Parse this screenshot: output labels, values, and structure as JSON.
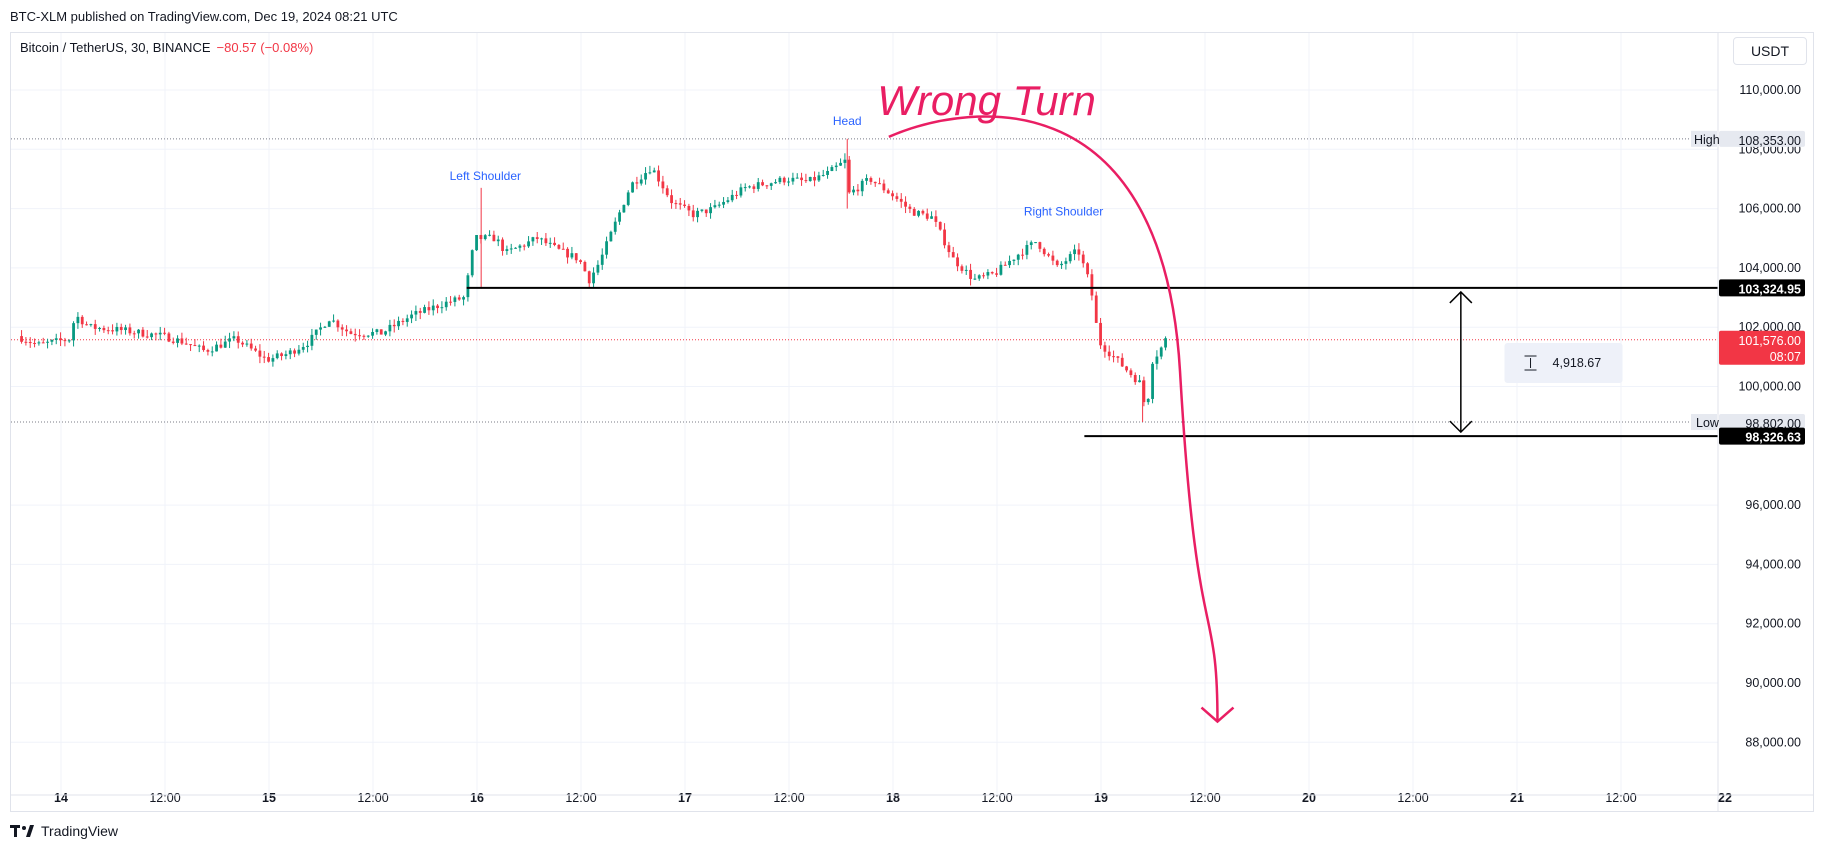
{
  "header": {
    "publisher_line": "BTC-XLM published on TradingView.com, Dec 19, 2024 08:21 UTC"
  },
  "legend": {
    "symbol": "Bitcoin / TetherUS, 30, BINANCE",
    "change": "−80.57 (−0.08%)"
  },
  "currency_button": "USDT",
  "footer": {
    "brand": "TradingView"
  },
  "chart_data": {
    "type": "candlestick",
    "symbol": "BTCUSDT",
    "interval": "30",
    "exchange": "BINANCE",
    "ylim": [
      87000,
      111500
    ],
    "y_ticks": [
      "110,000.00",
      "108,000.00",
      "106,000.00",
      "104,000.00",
      "102,000.00",
      "100,000.00",
      "96,000.00",
      "94,000.00",
      "92,000.00",
      "90,000.00",
      "88,000.00"
    ],
    "y_tick_values": [
      110000,
      108000,
      106000,
      104000,
      102000,
      100000,
      96000,
      94000,
      92000,
      90000,
      88000
    ],
    "x_ticks": [
      "14",
      "12:00",
      "15",
      "12:00",
      "16",
      "12:00",
      "17",
      "12:00",
      "18",
      "12:00",
      "19",
      "12:00",
      "20",
      "12:00",
      "21",
      "12:00",
      "22"
    ],
    "x_tick_days": [
      14,
      14.5,
      15,
      15.5,
      16,
      16.5,
      17,
      17.5,
      18,
      18.5,
      19,
      19.5,
      20,
      20.5,
      21,
      21.5,
      22
    ],
    "x_range_days": [
      13.8,
      22.0
    ],
    "last_candle_day": 19.32,
    "price_path_anchors": [
      {
        "t": 13.8,
        "p": 101700
      },
      {
        "t": 13.9,
        "p": 101400
      },
      {
        "t": 14.05,
        "p": 101600
      },
      {
        "t": 14.08,
        "p": 102400
      },
      {
        "t": 14.15,
        "p": 102000
      },
      {
        "t": 14.3,
        "p": 101900
      },
      {
        "t": 14.5,
        "p": 101700
      },
      {
        "t": 14.6,
        "p": 101500
      },
      {
        "t": 14.7,
        "p": 101200
      },
      {
        "t": 14.85,
        "p": 101600
      },
      {
        "t": 15.0,
        "p": 100900
      },
      {
        "t": 15.1,
        "p": 101100
      },
      {
        "t": 15.2,
        "p": 101500
      },
      {
        "t": 15.3,
        "p": 102300
      },
      {
        "t": 15.4,
        "p": 101800
      },
      {
        "t": 15.55,
        "p": 101800
      },
      {
        "t": 15.7,
        "p": 102400
      },
      {
        "t": 15.85,
        "p": 102800
      },
      {
        "t": 15.95,
        "p": 103000
      },
      {
        "t": 16.0,
        "p": 105000
      },
      {
        "t": 16.1,
        "p": 105000
      },
      {
        "t": 16.15,
        "p": 104500
      },
      {
        "t": 16.3,
        "p": 105000
      },
      {
        "t": 16.4,
        "p": 104600
      },
      {
        "t": 16.5,
        "p": 104300
      },
      {
        "t": 16.55,
        "p": 103600
      },
      {
        "t": 16.6,
        "p": 104200
      },
      {
        "t": 16.75,
        "p": 106800
      },
      {
        "t": 16.85,
        "p": 107400
      },
      {
        "t": 16.95,
        "p": 106200
      },
      {
        "t": 17.05,
        "p": 105800
      },
      {
        "t": 17.15,
        "p": 106000
      },
      {
        "t": 17.3,
        "p": 106700
      },
      {
        "t": 17.5,
        "p": 107000
      },
      {
        "t": 17.6,
        "p": 106900
      },
      {
        "t": 17.7,
        "p": 107200
      },
      {
        "t": 17.78,
        "p": 107600
      },
      {
        "t": 17.8,
        "p": 106500
      },
      {
        "t": 17.9,
        "p": 107000
      },
      {
        "t": 18.0,
        "p": 106500
      },
      {
        "t": 18.1,
        "p": 105900
      },
      {
        "t": 18.2,
        "p": 105700
      },
      {
        "t": 18.3,
        "p": 104300
      },
      {
        "t": 18.4,
        "p": 103600
      },
      {
        "t": 18.5,
        "p": 103800
      },
      {
        "t": 18.6,
        "p": 104400
      },
      {
        "t": 18.7,
        "p": 104900
      },
      {
        "t": 18.8,
        "p": 104000
      },
      {
        "t": 18.9,
        "p": 104600
      },
      {
        "t": 18.96,
        "p": 103400
      },
      {
        "t": 19.0,
        "p": 101500
      },
      {
        "t": 19.1,
        "p": 100800
      },
      {
        "t": 19.2,
        "p": 100100
      },
      {
        "t": 19.23,
        "p": 99000
      },
      {
        "t": 19.25,
        "p": 100800
      },
      {
        "t": 19.3,
        "p": 101300
      },
      {
        "t": 19.32,
        "p": 101576
      }
    ],
    "high": {
      "label": "High",
      "value": "108,353.00",
      "price": 108353
    },
    "low": {
      "label": "Low",
      "value": "98,802.00",
      "price": 98802
    },
    "last_price": {
      "value": "101,576.00",
      "countdown": "08:07",
      "price": 101576
    },
    "levels": [
      {
        "value": "103,324.95",
        "price": 103324.95
      },
      {
        "value": "98,326.63",
        "price": 98326.63
      }
    ],
    "measure": {
      "value": "4,918.67"
    },
    "annotations": {
      "left_shoulder": "Left Shoulder",
      "head": "Head",
      "right_shoulder": "Right Shoulder",
      "wrong_turn": "Wrong Turn"
    },
    "colors": {
      "up": "#089981",
      "down": "#f23645",
      "arrow": "#e91e63",
      "annotation": "#2962ff",
      "grid": "#f0f3fa"
    }
  }
}
